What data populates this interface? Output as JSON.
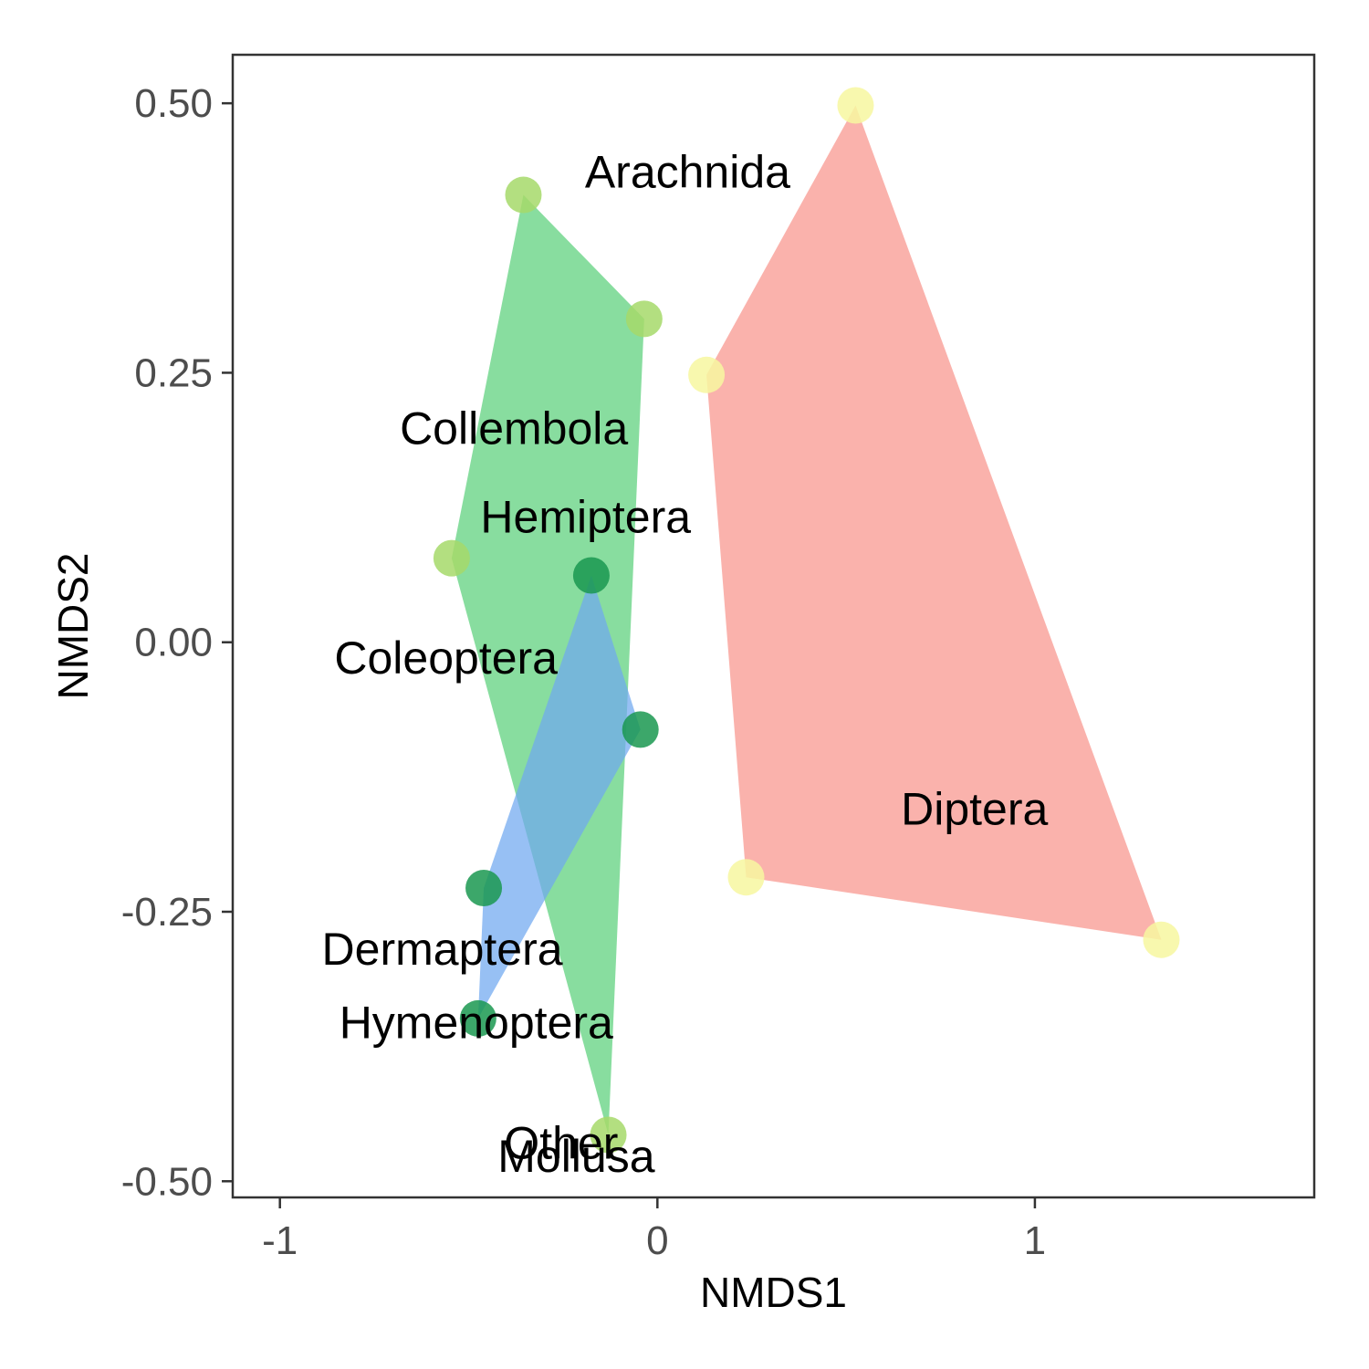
{
  "chart_data": {
    "type": "scatter",
    "title": "",
    "xlabel": "NMDS1",
    "ylabel": "NMDS2",
    "xlim": [
      -1.125,
      1.74
    ],
    "ylim": [
      -0.515,
      0.545
    ],
    "x_ticks": [
      {
        "value": -1,
        "label": "-1"
      },
      {
        "value": 0,
        "label": "0"
      },
      {
        "value": 1,
        "label": "1"
      }
    ],
    "y_ticks": [
      {
        "value": 0.5,
        "label": "0.50"
      },
      {
        "value": 0.25,
        "label": "0.25"
      },
      {
        "value": 0.0,
        "label": "0.00"
      },
      {
        "value": -0.25,
        "label": "-0.25"
      },
      {
        "value": -0.5,
        "label": "-0.50"
      }
    ],
    "grid": false,
    "groups": [
      {
        "id": "green-group",
        "hull_color": "#5ad07a",
        "point_color": "#a6d96a",
        "points": [
          {
            "x": -0.355,
            "y": 0.415
          },
          {
            "x": -0.035,
            "y": 0.3
          },
          {
            "x": -0.545,
            "y": 0.078
          },
          {
            "x": -0.13,
            "y": -0.457
          }
        ]
      },
      {
        "id": "red-group",
        "hull_color": "#f8948c",
        "point_color": "#f7f7a0",
        "points": [
          {
            "x": 0.525,
            "y": 0.498
          },
          {
            "x": 0.13,
            "y": 0.248
          },
          {
            "x": 0.235,
            "y": -0.218
          },
          {
            "x": 1.335,
            "y": -0.276
          }
        ]
      },
      {
        "id": "blue-group",
        "hull_color": "#6fa8f0",
        "point_color": "#1a9850",
        "points": [
          {
            "x": -0.175,
            "y": 0.062
          },
          {
            "x": -0.045,
            "y": -0.081
          },
          {
            "x": -0.46,
            "y": -0.228
          },
          {
            "x": -0.475,
            "y": -0.349
          }
        ]
      }
    ],
    "labels": [
      {
        "text": "Arachnida",
        "x": 0.08,
        "y": 0.433
      },
      {
        "text": "Collembola",
        "x": -0.38,
        "y": 0.195
      },
      {
        "text": "Hemiptera",
        "x": -0.19,
        "y": 0.113
      },
      {
        "text": "Coleoptera",
        "x": -0.56,
        "y": -0.018
      },
      {
        "text": "Diptera",
        "x": 0.84,
        "y": -0.158
      },
      {
        "text": "Dermaptera",
        "x": -0.57,
        "y": -0.288
      },
      {
        "text": "Hymenoptera",
        "x": -0.48,
        "y": -0.356
      },
      {
        "text": "Mollusa",
        "x": -0.215,
        "y": -0.48
      },
      {
        "text": "Other",
        "x": -0.255,
        "y": -0.468
      }
    ]
  }
}
